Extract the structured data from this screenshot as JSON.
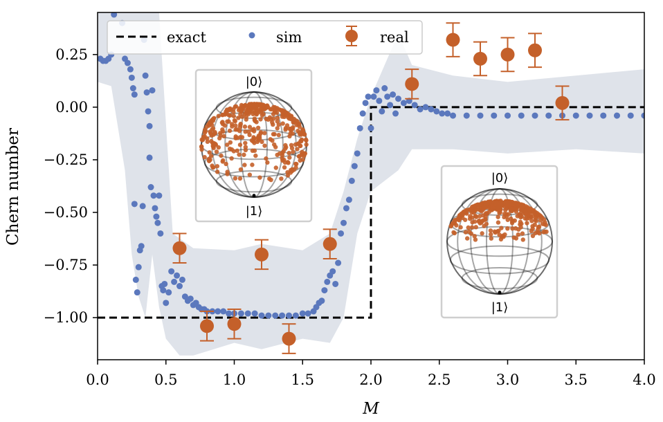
{
  "chart_data": {
    "type": "scatter",
    "xlabel": "M",
    "ylabel": "Chern number",
    "xlim": [
      0.0,
      4.0
    ],
    "ylim": [
      -1.2,
      0.45
    ],
    "xticks": [
      "0.0",
      "0.5",
      "1.0",
      "1.5",
      "2.0",
      "2.5",
      "3.0",
      "3.5",
      "4.0"
    ],
    "yticks": [
      "0.25",
      "0.00",
      "−0.25",
      "−0.50",
      "−0.75",
      "−1.00"
    ],
    "xtick_values": [
      0.0,
      0.5,
      1.0,
      1.5,
      2.0,
      2.5,
      3.0,
      3.5,
      4.0
    ],
    "ytick_values": [
      0.25,
      0.0,
      -0.25,
      -0.5,
      -0.75,
      -1.0
    ],
    "grid": false,
    "legend_position": "top-left",
    "colors": {
      "exact": "#000000",
      "sim": "#5b78bd",
      "real": "#c4602a",
      "band": "#dfe3ea"
    },
    "series": [
      {
        "name": "exact",
        "style": "dashed-line",
        "points": [
          [
            0.0,
            -1.0
          ],
          [
            2.0,
            -1.0
          ],
          [
            2.0,
            0.0
          ],
          [
            4.0,
            0.0
          ]
        ]
      },
      {
        "name": "sim",
        "style": "markers",
        "points": [
          [
            0.02,
            0.23
          ],
          [
            0.04,
            0.22
          ],
          [
            0.06,
            0.22
          ],
          [
            0.08,
            0.23
          ],
          [
            0.1,
            0.25
          ],
          [
            0.12,
            0.44
          ],
          [
            0.14,
            0.47
          ],
          [
            0.18,
            0.4
          ],
          [
            0.2,
            0.23
          ],
          [
            0.22,
            0.21
          ],
          [
            0.24,
            0.18
          ],
          [
            0.25,
            0.14
          ],
          [
            0.26,
            0.09
          ],
          [
            0.27,
            0.06
          ],
          [
            0.27,
            -0.46
          ],
          [
            0.28,
            -0.82
          ],
          [
            0.29,
            -0.88
          ],
          [
            0.3,
            -0.76
          ],
          [
            0.31,
            -0.68
          ],
          [
            0.32,
            -0.66
          ],
          [
            0.33,
            -0.47
          ],
          [
            0.34,
            0.32
          ],
          [
            0.35,
            0.15
          ],
          [
            0.36,
            0.07
          ],
          [
            0.37,
            -0.02
          ],
          [
            0.38,
            -0.09
          ],
          [
            0.38,
            -0.24
          ],
          [
            0.39,
            -0.38
          ],
          [
            0.4,
            0.08
          ],
          [
            0.41,
            -0.42
          ],
          [
            0.42,
            -0.48
          ],
          [
            0.43,
            -0.52
          ],
          [
            0.44,
            -0.55
          ],
          [
            0.45,
            -0.42
          ],
          [
            0.46,
            -0.6
          ],
          [
            0.47,
            -0.85
          ],
          [
            0.48,
            -0.87
          ],
          [
            0.49,
            -0.84
          ],
          [
            0.5,
            -0.93
          ],
          [
            0.52,
            -0.88
          ],
          [
            0.54,
            -0.78
          ],
          [
            0.56,
            -0.83
          ],
          [
            0.58,
            -0.8
          ],
          [
            0.6,
            -0.85
          ],
          [
            0.62,
            -0.82
          ],
          [
            0.64,
            -0.9
          ],
          [
            0.66,
            -0.92
          ],
          [
            0.68,
            -0.91
          ],
          [
            0.7,
            -0.94
          ],
          [
            0.72,
            -0.93
          ],
          [
            0.74,
            -0.95
          ],
          [
            0.76,
            -0.96
          ],
          [
            0.78,
            -0.96
          ],
          [
            0.8,
            -0.97
          ],
          [
            0.84,
            -0.97
          ],
          [
            0.88,
            -0.97
          ],
          [
            0.92,
            -0.97
          ],
          [
            0.96,
            -0.98
          ],
          [
            1.0,
            -0.98
          ],
          [
            1.05,
            -0.98
          ],
          [
            1.1,
            -0.98
          ],
          [
            1.15,
            -0.98
          ],
          [
            1.2,
            -0.99
          ],
          [
            1.25,
            -0.99
          ],
          [
            1.3,
            -0.99
          ],
          [
            1.35,
            -0.99
          ],
          [
            1.4,
            -0.99
          ],
          [
            1.45,
            -0.99
          ],
          [
            1.5,
            -0.98
          ],
          [
            1.54,
            -0.98
          ],
          [
            1.58,
            -0.97
          ],
          [
            1.6,
            -0.95
          ],
          [
            1.62,
            -0.93
          ],
          [
            1.64,
            -0.92
          ],
          [
            1.66,
            -0.87
          ],
          [
            1.68,
            -0.83
          ],
          [
            1.7,
            -0.8
          ],
          [
            1.72,
            -0.78
          ],
          [
            1.74,
            -0.84
          ],
          [
            1.76,
            -0.74
          ],
          [
            1.78,
            -0.6
          ],
          [
            1.8,
            -0.55
          ],
          [
            1.82,
            -0.48
          ],
          [
            1.84,
            -0.44
          ],
          [
            1.86,
            -0.35
          ],
          [
            1.88,
            -0.28
          ],
          [
            1.9,
            -0.22
          ],
          [
            1.92,
            -0.1
          ],
          [
            1.94,
            -0.03
          ],
          [
            1.96,
            0.02
          ],
          [
            1.98,
            0.05
          ],
          [
            2.0,
            -0.1
          ],
          [
            2.02,
            0.05
          ],
          [
            2.04,
            0.08
          ],
          [
            2.06,
            0.03
          ],
          [
            2.08,
            -0.02
          ],
          [
            2.1,
            0.09
          ],
          [
            2.12,
            0.05
          ],
          [
            2.14,
            0.01
          ],
          [
            2.16,
            0.06
          ],
          [
            2.18,
            -0.03
          ],
          [
            2.2,
            0.04
          ],
          [
            2.24,
            0.02
          ],
          [
            2.28,
            0.03
          ],
          [
            2.32,
            0.01
          ],
          [
            2.36,
            -0.01
          ],
          [
            2.4,
            0.0
          ],
          [
            2.44,
            -0.01
          ],
          [
            2.48,
            -0.02
          ],
          [
            2.52,
            -0.03
          ],
          [
            2.56,
            -0.03
          ],
          [
            2.6,
            -0.04
          ],
          [
            2.7,
            -0.04
          ],
          [
            2.8,
            -0.04
          ],
          [
            2.9,
            -0.04
          ],
          [
            3.0,
            -0.04
          ],
          [
            3.1,
            -0.04
          ],
          [
            3.2,
            -0.04
          ],
          [
            3.3,
            -0.04
          ],
          [
            3.4,
            -0.04
          ],
          [
            3.5,
            -0.04
          ],
          [
            3.6,
            -0.04
          ],
          [
            3.7,
            -0.04
          ],
          [
            3.8,
            -0.04
          ],
          [
            3.9,
            -0.04
          ],
          [
            4.0,
            -0.04
          ]
        ]
      },
      {
        "name": "real",
        "style": "markers-errorbars",
        "points": [
          {
            "x": 0.6,
            "y": -0.67,
            "err": 0.07
          },
          {
            "x": 0.8,
            "y": -1.04,
            "err": 0.07
          },
          {
            "x": 1.0,
            "y": -1.03,
            "err": 0.07
          },
          {
            "x": 1.2,
            "y": -0.7,
            "err": 0.07
          },
          {
            "x": 1.4,
            "y": -1.1,
            "err": 0.07
          },
          {
            "x": 1.7,
            "y": -0.65,
            "err": 0.07
          },
          {
            "x": 2.3,
            "y": 0.11,
            "err": 0.07
          },
          {
            "x": 2.6,
            "y": 0.32,
            "err": 0.08
          },
          {
            "x": 2.8,
            "y": 0.23,
            "err": 0.08
          },
          {
            "x": 3.0,
            "y": 0.25,
            "err": 0.08
          },
          {
            "x": 3.2,
            "y": 0.27,
            "err": 0.08
          },
          {
            "x": 3.4,
            "y": 0.02,
            "err": 0.08
          }
        ]
      }
    ],
    "band": {
      "upper": [
        [
          0.0,
          0.45
        ],
        [
          0.45,
          0.45
        ],
        [
          0.55,
          -0.6
        ],
        [
          0.7,
          -0.67
        ],
        [
          1.0,
          -0.68
        ],
        [
          1.2,
          -0.65
        ],
        [
          1.5,
          -0.68
        ],
        [
          1.7,
          -0.6
        ],
        [
          1.8,
          -0.4
        ],
        [
          1.9,
          -0.15
        ],
        [
          2.0,
          0.05
        ],
        [
          2.1,
          0.2
        ],
        [
          2.2,
          0.35
        ],
        [
          2.3,
          0.2
        ],
        [
          2.6,
          0.15
        ],
        [
          3.0,
          0.12
        ],
        [
          3.5,
          0.15
        ],
        [
          4.0,
          0.18
        ]
      ],
      "lower": [
        [
          4.0,
          -0.22
        ],
        [
          3.5,
          -0.2
        ],
        [
          3.0,
          -0.22
        ],
        [
          2.6,
          -0.2
        ],
        [
          2.3,
          -0.2
        ],
        [
          2.2,
          -0.3
        ],
        [
          2.1,
          -0.35
        ],
        [
          2.0,
          -0.4
        ],
        [
          1.9,
          -0.6
        ],
        [
          1.8,
          -1.0
        ],
        [
          1.7,
          -1.12
        ],
        [
          1.5,
          -1.1
        ],
        [
          1.2,
          -1.15
        ],
        [
          1.0,
          -1.12
        ],
        [
          0.7,
          -1.18
        ],
        [
          0.6,
          -1.18
        ],
        [
          0.5,
          -1.1
        ],
        [
          0.45,
          -0.95
        ],
        [
          0.4,
          -0.7
        ],
        [
          0.35,
          -1.0
        ],
        [
          0.3,
          -0.9
        ],
        [
          0.25,
          -0.7
        ],
        [
          0.2,
          -0.3
        ],
        [
          0.1,
          0.1
        ],
        [
          0.0,
          0.12
        ]
      ]
    },
    "legend": [
      "exact",
      "sim",
      "real"
    ],
    "insets": [
      {
        "top_label": "|0⟩",
        "bottom_label": "|1⟩"
      },
      {
        "top_label": "|0⟩",
        "bottom_label": "|1⟩"
      }
    ]
  }
}
